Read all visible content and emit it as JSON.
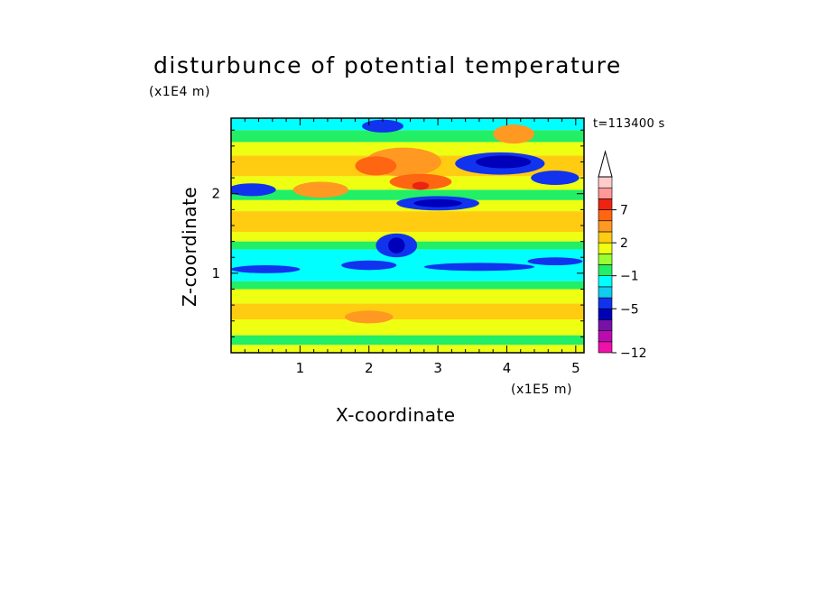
{
  "chart_data": {
    "type": "heatmap",
    "title": "disturbunce of potential temperature",
    "xlabel": "X-coordinate",
    "ylabel": "Z-coordinate",
    "x_unit": "(x1E5 m)",
    "z_unit": "(x1E4 m)",
    "time_label": "t=113400 s",
    "xlim": [
      0,
      5.12
    ],
    "ylim": [
      0,
      2.95
    ],
    "x_ticks": [
      1,
      2,
      3,
      4,
      5
    ],
    "x_tick_labels": [
      "1",
      "2",
      "3",
      "4",
      "5"
    ],
    "y_ticks": [
      1,
      2
    ],
    "y_tick_labels": [
      "1",
      "2"
    ],
    "colorbar": {
      "levels": [
        -12,
        -11,
        -9,
        -7,
        -5,
        -4,
        -3,
        -1,
        0,
        1,
        2,
        3,
        5,
        7,
        9,
        11
      ],
      "colors": [
        "#ee11aa",
        "#bb0bb0",
        "#7711aa",
        "#0000bb",
        "#1133ee",
        "#11ccee",
        "#00ffff",
        "#22ee66",
        "#99ff33",
        "#eeff11",
        "#ffcc11",
        "#ff9922",
        "#ff6611",
        "#ee2211",
        "#ff9999",
        "#ffcccc"
      ],
      "tick_values": [
        7,
        2,
        -1,
        -5,
        -12
      ],
      "tick_labels": [
        "7",
        "2",
        "−1",
        "−5",
        "−12"
      ],
      "extend": "max"
    },
    "bands": [
      {
        "z0": 0.0,
        "z1": 0.1,
        "color": "#eeff11"
      },
      {
        "z0": 0.1,
        "z1": 0.22,
        "color": "#22ee66"
      },
      {
        "z0": 0.22,
        "z1": 0.42,
        "color": "#eeff11"
      },
      {
        "z0": 0.42,
        "z1": 0.62,
        "color": "#ffcc11"
      },
      {
        "z0": 0.62,
        "z1": 0.8,
        "color": "#eeff11"
      },
      {
        "z0": 0.8,
        "z1": 0.9,
        "color": "#22ee66"
      },
      {
        "z0": 0.9,
        "z1": 1.3,
        "color": "#00ffff"
      },
      {
        "z0": 1.3,
        "z1": 1.4,
        "color": "#22ee66"
      },
      {
        "z0": 1.4,
        "z1": 1.52,
        "color": "#eeff11"
      },
      {
        "z0": 1.52,
        "z1": 1.78,
        "color": "#ffcc11"
      },
      {
        "z0": 1.78,
        "z1": 1.92,
        "color": "#eeff11"
      },
      {
        "z0": 1.92,
        "z1": 2.05,
        "color": "#22ee66"
      },
      {
        "z0": 2.05,
        "z1": 2.22,
        "color": "#eeff11"
      },
      {
        "z0": 2.22,
        "z1": 2.48,
        "color": "#ffcc11"
      },
      {
        "z0": 2.48,
        "z1": 2.65,
        "color": "#eeff11"
      },
      {
        "z0": 2.65,
        "z1": 2.8,
        "color": "#22ee66"
      },
      {
        "z0": 2.8,
        "z1": 2.95,
        "color": "#00ffff"
      }
    ],
    "blobs": [
      {
        "x": 0.5,
        "z": 1.05,
        "rx": 0.5,
        "rz": 0.05,
        "color": "#1133ee"
      },
      {
        "x": 2.0,
        "z": 1.1,
        "rx": 0.4,
        "rz": 0.06,
        "color": "#1133ee"
      },
      {
        "x": 3.6,
        "z": 1.08,
        "rx": 0.8,
        "rz": 0.05,
        "color": "#1133ee"
      },
      {
        "x": 4.7,
        "z": 1.15,
        "rx": 0.4,
        "rz": 0.05,
        "color": "#1133ee"
      },
      {
        "x": 0.3,
        "z": 2.05,
        "rx": 0.35,
        "rz": 0.08,
        "color": "#1133ee"
      },
      {
        "x": 3.0,
        "z": 1.88,
        "rx": 0.6,
        "rz": 0.09,
        "color": "#1133ee"
      },
      {
        "x": 3.9,
        "z": 2.38,
        "rx": 0.65,
        "rz": 0.14,
        "color": "#1133ee"
      },
      {
        "x": 4.7,
        "z": 2.2,
        "rx": 0.35,
        "rz": 0.09,
        "color": "#1133ee"
      },
      {
        "x": 2.2,
        "z": 2.85,
        "rx": 0.3,
        "rz": 0.08,
        "color": "#1133ee"
      },
      {
        "x": 2.4,
        "z": 1.35,
        "rx": 0.3,
        "rz": 0.15,
        "color": "#1133ee"
      },
      {
        "x": 3.95,
        "z": 2.4,
        "rx": 0.4,
        "rz": 0.08,
        "color": "#0000bb"
      },
      {
        "x": 3.0,
        "z": 1.88,
        "rx": 0.35,
        "rz": 0.05,
        "color": "#0000bb"
      },
      {
        "x": 2.4,
        "z": 1.35,
        "rx": 0.12,
        "rz": 0.1,
        "color": "#0000bb"
      },
      {
        "x": 2.5,
        "z": 2.4,
        "rx": 0.55,
        "rz": 0.18,
        "color": "#ff9922"
      },
      {
        "x": 4.1,
        "z": 2.75,
        "rx": 0.3,
        "rz": 0.12,
        "color": "#ff9922"
      },
      {
        "x": 1.3,
        "z": 2.05,
        "rx": 0.4,
        "rz": 0.1,
        "color": "#ff9922"
      },
      {
        "x": 2.0,
        "z": 0.45,
        "rx": 0.35,
        "rz": 0.08,
        "color": "#ff9922"
      },
      {
        "x": 2.75,
        "z": 2.15,
        "rx": 0.45,
        "rz": 0.1,
        "color": "#ff6611"
      },
      {
        "x": 2.1,
        "z": 2.35,
        "rx": 0.3,
        "rz": 0.12,
        "color": "#ff6611"
      },
      {
        "x": 2.75,
        "z": 2.1,
        "rx": 0.12,
        "rz": 0.05,
        "color": "#ee2211"
      }
    ]
  }
}
